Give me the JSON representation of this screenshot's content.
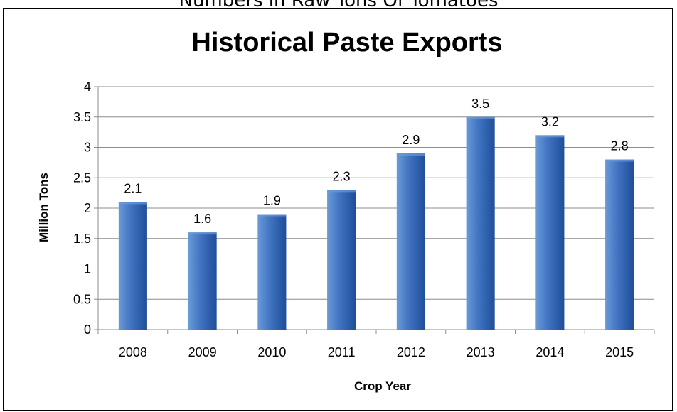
{
  "header": {
    "subtitle": "Numbers in Raw Tons Of Tomatoes"
  },
  "colors": {
    "bar_light": "#6a9ad8",
    "bar_mid": "#3f72c0",
    "bar_dark": "#1f4e9a",
    "grid": "#8c8c8c"
  },
  "chart_data": {
    "type": "bar",
    "title": "Historical Paste Exports",
    "xlabel": "Crop Year",
    "ylabel": "Million Tons",
    "categories": [
      "2008",
      "2009",
      "2010",
      "2011",
      "2012",
      "2013",
      "2014",
      "2015"
    ],
    "values": [
      2.1,
      1.6,
      1.9,
      2.3,
      2.9,
      3.5,
      3.2,
      2.8
    ],
    "data_labels": [
      "2.1",
      "1.6",
      "1.9",
      "2.3",
      "2.9",
      "3.5",
      "3.2",
      "2.8"
    ],
    "ylim": [
      0,
      4
    ],
    "yticks": [
      "0",
      "0.5",
      "1",
      "1.5",
      "2",
      "2.5",
      "3",
      "3.5",
      "4"
    ],
    "grid": true,
    "legend": "none"
  }
}
